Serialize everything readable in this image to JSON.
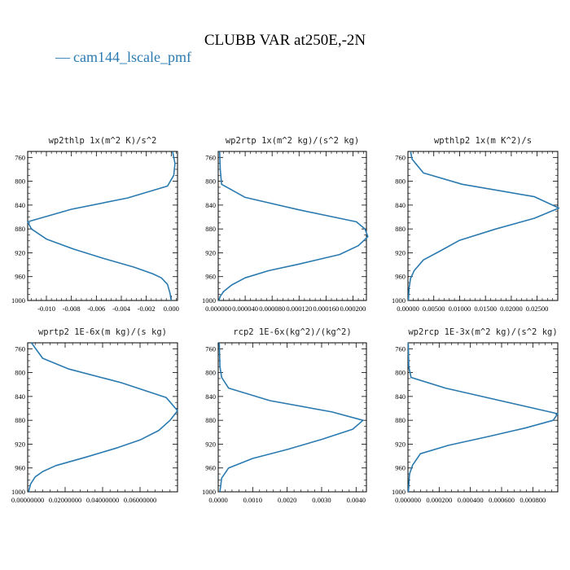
{
  "figure": {
    "title": "CLUBB VAR at250E,-2N",
    "legend": [
      {
        "label": "cam144_lscale_pmf",
        "color": "#2a7ab0",
        "marker": "—"
      }
    ]
  },
  "chart_data": [
    {
      "type": "line",
      "title": "wp2thlp  1x(m^2 K)/s^2",
      "xlim": [
        -0.0115,
        0.0005
      ],
      "ylim": [
        1000,
        750
      ],
      "yticks": [
        760,
        800,
        840,
        880,
        920,
        960,
        1000
      ],
      "xticks": [
        -0.01,
        -0.008,
        -0.006,
        -0.004,
        -0.002,
        0.0
      ],
      "xtick_labels": [
        "-0.010",
        "-0.008",
        "-0.006",
        "-0.004",
        "-0.002",
        "0.000"
      ],
      "series": [
        {
          "color": "#2a7ab0",
          "x": [
            0.0001,
            0.0003,
            0.0002,
            -0.0003,
            -0.0035,
            -0.008,
            -0.0115,
            -0.0112,
            -0.01,
            -0.0078,
            -0.0055,
            -0.003,
            -0.0015,
            -0.0008,
            -0.0003,
            -0.0001,
            0.0
          ],
          "y": [
            750,
            770,
            790,
            808,
            828,
            847,
            868,
            880,
            897,
            914,
            929,
            944,
            955,
            962,
            973,
            988,
            1000
          ]
        }
      ]
    },
    {
      "type": "line",
      "title": "wp2rtp  1x(m^2 kg)/(s^2 kg)",
      "xlim": [
        0.0,
        0.00022
      ],
      "ylim": [
        1000,
        750
      ],
      "yticks": [
        760,
        800,
        840,
        880,
        920,
        960,
        1000
      ],
      "xticks": [
        0.0,
        4e-05,
        8e-05,
        0.00012,
        0.00016,
        0.0002
      ],
      "xtick_labels": [
        "0.000000",
        "0.000040",
        "0.000080",
        "0.000120",
        "0.000160",
        "0.000200"
      ],
      "series": [
        {
          "color": "#2a7ab0",
          "x": [
            2e-06,
            3e-06,
            5e-06,
            4e-05,
            0.00012,
            0.000205,
            0.000218,
            0.000222,
            0.000208,
            0.00018,
            0.00012,
            7.5e-05,
            4e-05,
            2e-05,
            8e-06,
            3e-06,
            1e-06
          ],
          "y": [
            750,
            780,
            805,
            827,
            848,
            868,
            880,
            893,
            908,
            923,
            939,
            950,
            962,
            974,
            985,
            993,
            1000
          ]
        }
      ]
    },
    {
      "type": "line",
      "title": "wpthlp2  1x(m K^2)/s",
      "xlim": [
        0.0,
        0.029
      ],
      "ylim": [
        1000,
        750
      ],
      "yticks": [
        760,
        800,
        840,
        880,
        920,
        960,
        1000
      ],
      "xticks": [
        0.0,
        0.005,
        0.01,
        0.015,
        0.02,
        0.025
      ],
      "xtick_labels": [
        "0.00000",
        "0.00500",
        "0.01000",
        "0.01500",
        "0.02000",
        "0.02500"
      ],
      "series": [
        {
          "color": "#2a7ab0",
          "x": [
            0.0005,
            0.0008,
            0.003,
            0.0105,
            0.0245,
            0.0292,
            0.0245,
            0.017,
            0.01,
            0.006,
            0.003,
            0.0012,
            0.0005,
            0.0002,
            0.0001
          ],
          "y": [
            750,
            763,
            786,
            805,
            826,
            845,
            862,
            880,
            899,
            918,
            932,
            950,
            963,
            980,
            1000
          ]
        }
      ]
    },
    {
      "type": "line",
      "title": "wprtp2  1E-6x(m kg)/(s kg)",
      "xlim": [
        0.0,
        0.08
      ],
      "ylim": [
        1000,
        750
      ],
      "yticks": [
        760,
        800,
        840,
        880,
        920,
        960,
        1000
      ],
      "xticks": [
        0.0,
        0.02,
        0.04,
        0.06
      ],
      "xtick_labels": [
        "0.00000000",
        "0.02000000",
        "0.04000000",
        "0.06000000"
      ],
      "series": [
        {
          "color": "#2a7ab0",
          "x": [
            0.002,
            0.008,
            0.022,
            0.05,
            0.074,
            0.08,
            0.076,
            0.07,
            0.06,
            0.048,
            0.032,
            0.015,
            0.008,
            0.004,
            0.0015,
            0.0005
          ],
          "y": [
            750,
            776,
            794,
            817,
            842,
            864,
            880,
            897,
            913,
            926,
            941,
            956,
            966,
            975,
            987,
            1000
          ]
        }
      ]
    },
    {
      "type": "line",
      "title": "rcp2  1E-6x(kg^2)/(kg^2)",
      "xlim": [
        0.0,
        0.0043
      ],
      "ylim": [
        1000,
        750
      ],
      "yticks": [
        760,
        800,
        840,
        880,
        920,
        960,
        1000
      ],
      "xticks": [
        0.0,
        0.001,
        0.002,
        0.003,
        0.004
      ],
      "xtick_labels": [
        "0.0000",
        "0.0010",
        "0.0020",
        "0.0030",
        "0.0040"
      ],
      "series": [
        {
          "color": "#2a7ab0",
          "x": [
            3e-05,
            5e-05,
            0.0001,
            0.0003,
            0.0015,
            0.0033,
            0.0042,
            0.0039,
            0.003,
            0.002,
            0.001,
            0.0003,
            0.0001,
            5e-05
          ],
          "y": [
            750,
            790,
            808,
            826,
            847,
            866,
            880,
            895,
            912,
            929,
            944,
            960,
            977,
            1000
          ]
        }
      ]
    },
    {
      "type": "line",
      "title": "wp2rcp  1E-3x(m^2 kg)/(s^2 kg)",
      "xlim": [
        0.0,
        0.00096
      ],
      "ylim": [
        1000,
        750
      ],
      "yticks": [
        760,
        800,
        840,
        880,
        920,
        960,
        1000
      ],
      "xticks": [
        0.0,
        0.0002,
        0.0004,
        0.0006,
        0.0008
      ],
      "xtick_labels": [
        "0.000000",
        "0.000200",
        "0.000400",
        "0.000600",
        "0.000800"
      ],
      "series": [
        {
          "color": "#2a7ab0",
          "x": [
            2e-06,
            5e-06,
            2e-05,
            0.00024,
            0.00096,
            0.00093,
            0.00075,
            0.00052,
            0.00026,
            8e-05,
            3e-05,
            1e-05,
            3e-06
          ],
          "y": [
            750,
            790,
            808,
            826,
            869,
            880,
            893,
            907,
            922,
            936,
            955,
            970,
            1000
          ]
        }
      ]
    }
  ]
}
